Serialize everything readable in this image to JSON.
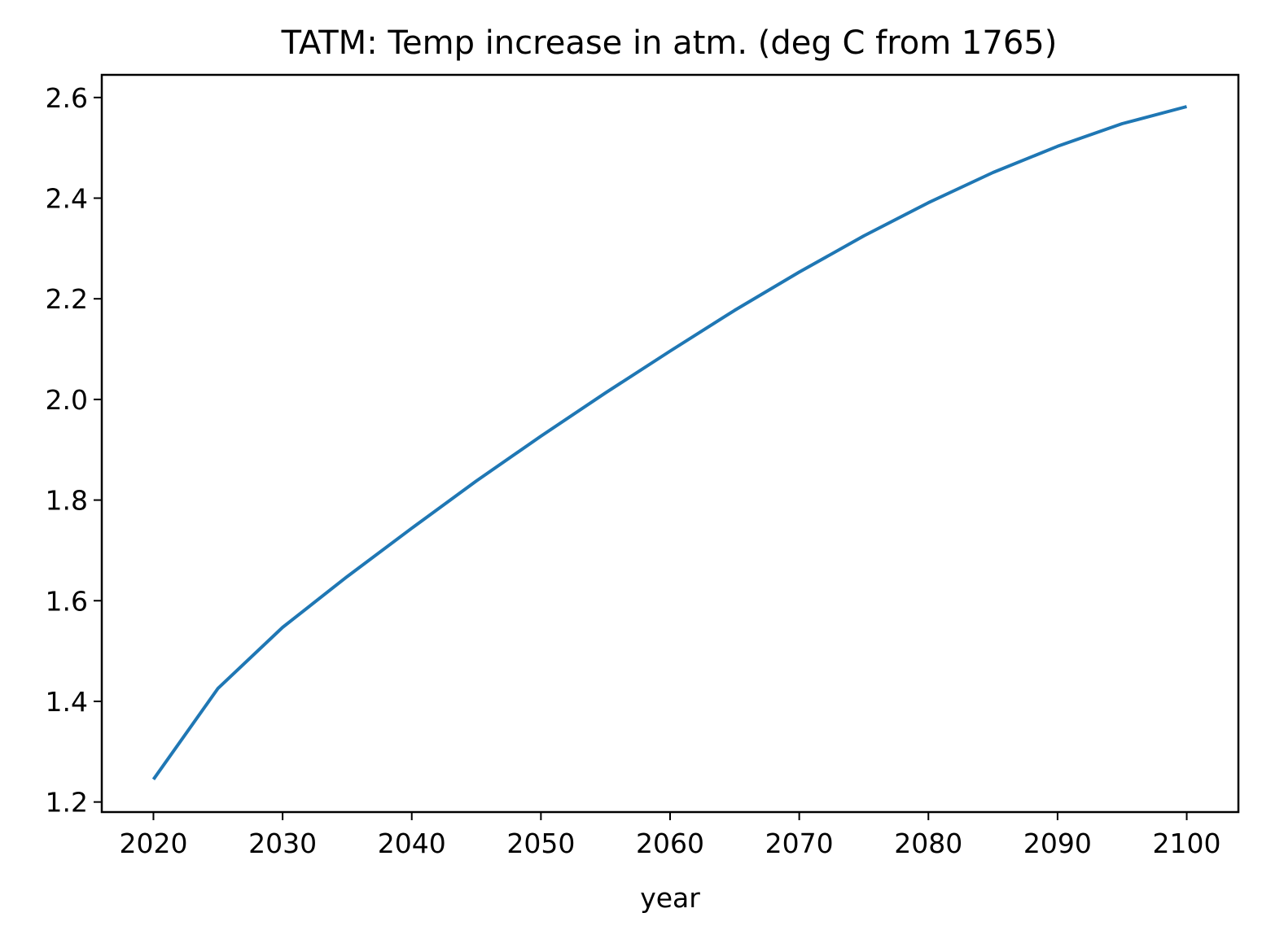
{
  "chart_data": {
    "type": "line",
    "title": "TATM: Temp increase in atm. (deg C from 1765)",
    "xlabel": "year",
    "ylabel": "",
    "xlim": [
      2016,
      2104
    ],
    "ylim": [
      1.18,
      2.645
    ],
    "x_ticks": [
      "2020",
      "2030",
      "2040",
      "2050",
      "2060",
      "2070",
      "2080",
      "2090",
      "2100"
    ],
    "y_ticks": [
      "1.2",
      "1.4",
      "1.6",
      "1.8",
      "2.0",
      "2.2",
      "2.4",
      "2.6"
    ],
    "grid": false,
    "legend": "none",
    "series": [
      {
        "color": "#1f77b4",
        "x": [
          2020,
          2025,
          2030,
          2035,
          2040,
          2045,
          2050,
          2055,
          2060,
          2065,
          2070,
          2075,
          2080,
          2085,
          2090,
          2095,
          2100
        ],
        "y": [
          1.245,
          1.426,
          1.547,
          1.648,
          1.744,
          1.838,
          1.927,
          2.013,
          2.096,
          2.177,
          2.253,
          2.325,
          2.391,
          2.451,
          2.503,
          2.548,
          2.582
        ]
      }
    ]
  }
}
